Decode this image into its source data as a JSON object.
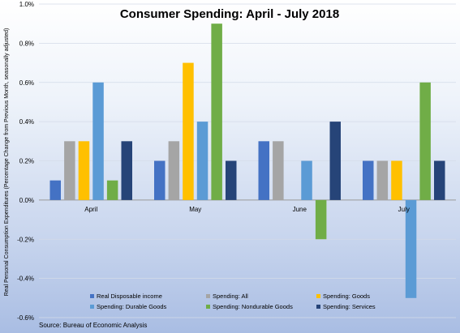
{
  "chart_data": {
    "type": "bar",
    "title": "Consumer Spending: April - July 2018",
    "ylabel": "Real Personal Consumption Expenditures (Percentage Change from Previous Month, seasonally adjusted)",
    "xlabel": "",
    "categories": [
      "April",
      "May",
      "June",
      "July"
    ],
    "ylim": [
      -0.6,
      1.0
    ],
    "yticks": [
      1.0,
      0.8,
      0.6,
      0.4,
      0.2,
      0.0,
      -0.2,
      -0.4,
      -0.6
    ],
    "ytick_labels": [
      "1.0%",
      "0.8%",
      "0.6%",
      "0.4%",
      "0.2%",
      "0.0%",
      "-0.2%",
      "-0.4%",
      "-0.6%"
    ],
    "grid": true,
    "legend_position": "bottom",
    "series": [
      {
        "name": "Real Disposable income",
        "color": "#4472c4",
        "values": [
          0.1,
          0.2,
          0.3,
          0.2
        ]
      },
      {
        "name": "Spending: All",
        "color": "#a5a5a5",
        "values": [
          0.3,
          0.3,
          0.3,
          0.2
        ]
      },
      {
        "name": "Spending: Goods",
        "color": "#ffc000",
        "values": [
          0.3,
          0.7,
          0.0,
          0.2
        ]
      },
      {
        "name": "Spending: Durable Goods",
        "color": "#5b9bd5",
        "values": [
          0.6,
          0.4,
          0.2,
          -0.5
        ]
      },
      {
        "name": "Spending: Nondurable Goods",
        "color": "#70ad47",
        "values": [
          0.1,
          0.9,
          -0.2,
          0.6
        ]
      },
      {
        "name": "Spending: Services",
        "color": "#264478",
        "values": [
          0.3,
          0.2,
          0.4,
          0.2
        ]
      }
    ],
    "source": "Source: Bureau of Economic Analysis"
  }
}
